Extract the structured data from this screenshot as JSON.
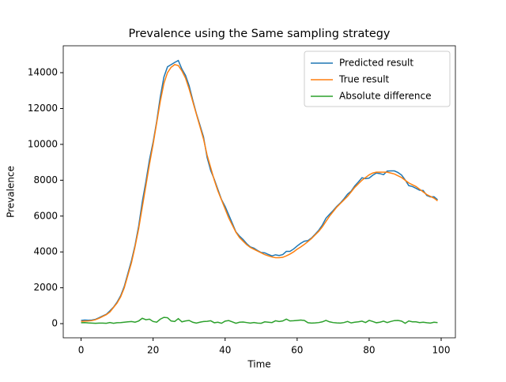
{
  "chart_data": {
    "type": "line",
    "title": "Prevalence using the Same sampling strategy",
    "x_label": "Time",
    "y_label": "Prevalence",
    "legend": "upper right",
    "x": [
      0,
      1,
      2,
      3,
      4,
      5,
      6,
      7,
      8,
      9,
      10,
      11,
      12,
      13,
      14,
      15,
      16,
      17,
      18,
      19,
      20,
      21,
      22,
      23,
      24,
      25,
      26,
      27,
      28,
      29,
      30,
      31,
      32,
      33,
      34,
      35,
      36,
      37,
      38,
      39,
      40,
      41,
      42,
      43,
      44,
      45,
      46,
      47,
      48,
      49,
      50,
      51,
      52,
      53,
      54,
      55,
      56,
      57,
      58,
      59,
      60,
      61,
      62,
      63,
      64,
      65,
      66,
      67,
      68,
      69,
      70,
      71,
      72,
      73,
      74,
      75,
      76,
      77,
      78,
      79,
      80,
      81,
      82,
      83,
      84,
      85,
      86,
      87,
      88,
      89,
      90,
      91,
      92,
      93,
      94,
      95,
      96,
      97,
      98,
      99
    ],
    "series": [
      {
        "name": "Predicted result",
        "color": "#1f77b4",
        "values": [
          180,
          200,
          190,
          200,
          240,
          330,
          430,
          520,
          710,
          920,
          1200,
          1560,
          2080,
          2800,
          3520,
          4380,
          5450,
          6800,
          7920,
          9150,
          10120,
          11280,
          12650,
          13750,
          14330,
          14450,
          14570,
          14680,
          14200,
          13850,
          13280,
          12480,
          11730,
          11080,
          10420,
          9270,
          8540,
          8050,
          7480,
          6920,
          6540,
          6070,
          5600,
          5120,
          4880,
          4690,
          4460,
          4280,
          4210,
          4080,
          3970,
          3950,
          3860,
          3780,
          3840,
          3800,
          3850,
          4030,
          4030,
          4160,
          4330,
          4480,
          4600,
          4630,
          4780,
          4990,
          5210,
          5500,
          5880,
          6100,
          6310,
          6540,
          6730,
          6960,
          7220,
          7390,
          7680,
          7900,
          8140,
          8090,
          8120,
          8280,
          8400,
          8370,
          8310,
          8510,
          8520,
          8520,
          8430,
          8290,
          8020,
          7700,
          7650,
          7550,
          7440,
          7430,
          7150,
          7070,
          7080,
          6910
        ]
      },
      {
        "name": "True result",
        "color": "#ff7f0e",
        "values": [
          130,
          140,
          150,
          170,
          220,
          300,
          400,
          500,
          650,
          900,
          1150,
          1500,
          2000,
          2700,
          3400,
          4300,
          5300,
          6500,
          7700,
          8900,
          10000,
          11200,
          12400,
          13400,
          14000,
          14300,
          14450,
          14400,
          14100,
          13700,
          13100,
          12400,
          11700,
          11000,
          10300,
          9400,
          8700,
          8000,
          7400,
          6900,
          6400,
          5900,
          5500,
          5100,
          4800,
          4600,
          4400,
          4250,
          4150,
          4050,
          3950,
          3850,
          3780,
          3720,
          3680,
          3680,
          3700,
          3780,
          3880,
          4000,
          4150,
          4280,
          4420,
          4580,
          4750,
          4950,
          5150,
          5400,
          5700,
          6000,
          6250,
          6500,
          6700,
          6900,
          7100,
          7350,
          7600,
          7800,
          8000,
          8150,
          8300,
          8400,
          8450,
          8450,
          8450,
          8450,
          8400,
          8350,
          8250,
          8150,
          8000,
          7850,
          7750,
          7650,
          7500,
          7350,
          7200,
          7100,
          7000,
          6850
        ]
      },
      {
        "name": "Absolute difference",
        "color": "#2ca02c",
        "values": [
          50,
          60,
          40,
          30,
          20,
          30,
          30,
          20,
          60,
          20,
          50,
          60,
          80,
          100,
          120,
          80,
          150,
          300,
          220,
          250,
          120,
          80,
          250,
          350,
          330,
          150,
          120,
          280,
          100,
          150,
          180,
          80,
          30,
          80,
          120,
          130,
          160,
          50,
          80,
          20,
          140,
          170,
          100,
          20,
          80,
          90,
          60,
          30,
          60,
          30,
          20,
          100,
          80,
          60,
          160,
          120,
          150,
          250,
          150,
          160,
          180,
          200,
          180,
          50,
          30,
          40,
          60,
          100,
          180,
          100,
          60,
          40,
          30,
          60,
          120,
          40,
          80,
          100,
          140,
          60,
          180,
          120,
          50,
          80,
          140,
          60,
          120,
          170,
          180,
          140,
          20,
          150,
          100,
          100,
          60,
          80,
          50,
          30,
          80,
          60
        ]
      }
    ],
    "xlim": [
      -4.95,
      103.95
    ],
    "xticks": [
      0,
      20,
      40,
      60,
      80,
      100
    ],
    "ylim": [
      -790,
      15500
    ],
    "yticks": [
      0,
      2000,
      4000,
      6000,
      8000,
      10000,
      12000,
      14000
    ]
  }
}
